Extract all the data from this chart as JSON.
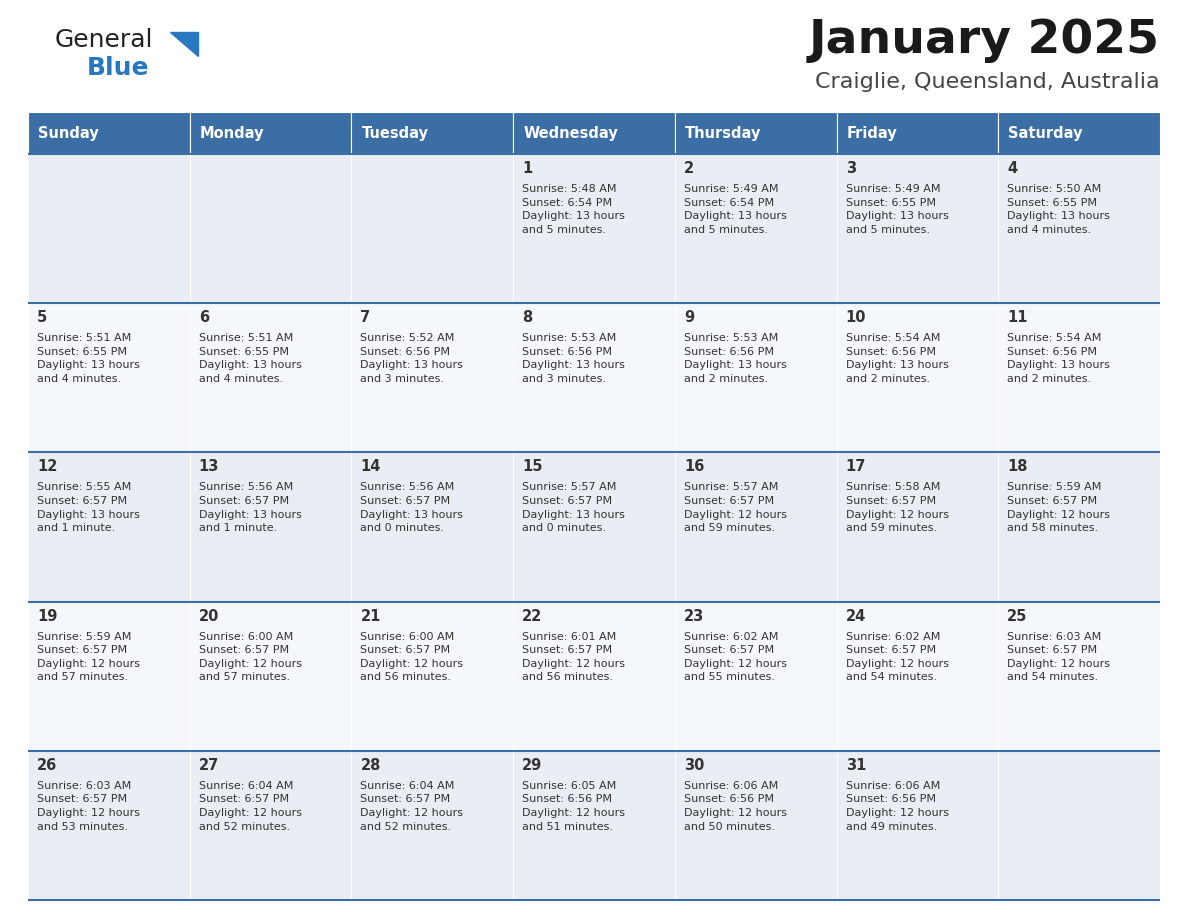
{
  "title": "January 2025",
  "subtitle": "Craiglie, Queensland, Australia",
  "header_color": "#3a6ea5",
  "header_text_color": "#ffffff",
  "cell_bg_odd": "#e8eef4",
  "cell_bg_even": "#f5f8fb",
  "separator_color": "#3a6ea5",
  "text_color": "#333333",
  "days_of_week": [
    "Sunday",
    "Monday",
    "Tuesday",
    "Wednesday",
    "Thursday",
    "Friday",
    "Saturday"
  ],
  "weeks": [
    [
      {
        "day": "",
        "info": ""
      },
      {
        "day": "",
        "info": ""
      },
      {
        "day": "",
        "info": ""
      },
      {
        "day": "1",
        "info": "Sunrise: 5:48 AM\nSunset: 6:54 PM\nDaylight: 13 hours\nand 5 minutes."
      },
      {
        "day": "2",
        "info": "Sunrise: 5:49 AM\nSunset: 6:54 PM\nDaylight: 13 hours\nand 5 minutes."
      },
      {
        "day": "3",
        "info": "Sunrise: 5:49 AM\nSunset: 6:55 PM\nDaylight: 13 hours\nand 5 minutes."
      },
      {
        "day": "4",
        "info": "Sunrise: 5:50 AM\nSunset: 6:55 PM\nDaylight: 13 hours\nand 4 minutes."
      }
    ],
    [
      {
        "day": "5",
        "info": "Sunrise: 5:51 AM\nSunset: 6:55 PM\nDaylight: 13 hours\nand 4 minutes."
      },
      {
        "day": "6",
        "info": "Sunrise: 5:51 AM\nSunset: 6:55 PM\nDaylight: 13 hours\nand 4 minutes."
      },
      {
        "day": "7",
        "info": "Sunrise: 5:52 AM\nSunset: 6:56 PM\nDaylight: 13 hours\nand 3 minutes."
      },
      {
        "day": "8",
        "info": "Sunrise: 5:53 AM\nSunset: 6:56 PM\nDaylight: 13 hours\nand 3 minutes."
      },
      {
        "day": "9",
        "info": "Sunrise: 5:53 AM\nSunset: 6:56 PM\nDaylight: 13 hours\nand 2 minutes."
      },
      {
        "day": "10",
        "info": "Sunrise: 5:54 AM\nSunset: 6:56 PM\nDaylight: 13 hours\nand 2 minutes."
      },
      {
        "day": "11",
        "info": "Sunrise: 5:54 AM\nSunset: 6:56 PM\nDaylight: 13 hours\nand 2 minutes."
      }
    ],
    [
      {
        "day": "12",
        "info": "Sunrise: 5:55 AM\nSunset: 6:57 PM\nDaylight: 13 hours\nand 1 minute."
      },
      {
        "day": "13",
        "info": "Sunrise: 5:56 AM\nSunset: 6:57 PM\nDaylight: 13 hours\nand 1 minute."
      },
      {
        "day": "14",
        "info": "Sunrise: 5:56 AM\nSunset: 6:57 PM\nDaylight: 13 hours\nand 0 minutes."
      },
      {
        "day": "15",
        "info": "Sunrise: 5:57 AM\nSunset: 6:57 PM\nDaylight: 13 hours\nand 0 minutes."
      },
      {
        "day": "16",
        "info": "Sunrise: 5:57 AM\nSunset: 6:57 PM\nDaylight: 12 hours\nand 59 minutes."
      },
      {
        "day": "17",
        "info": "Sunrise: 5:58 AM\nSunset: 6:57 PM\nDaylight: 12 hours\nand 59 minutes."
      },
      {
        "day": "18",
        "info": "Sunrise: 5:59 AM\nSunset: 6:57 PM\nDaylight: 12 hours\nand 58 minutes."
      }
    ],
    [
      {
        "day": "19",
        "info": "Sunrise: 5:59 AM\nSunset: 6:57 PM\nDaylight: 12 hours\nand 57 minutes."
      },
      {
        "day": "20",
        "info": "Sunrise: 6:00 AM\nSunset: 6:57 PM\nDaylight: 12 hours\nand 57 minutes."
      },
      {
        "day": "21",
        "info": "Sunrise: 6:00 AM\nSunset: 6:57 PM\nDaylight: 12 hours\nand 56 minutes."
      },
      {
        "day": "22",
        "info": "Sunrise: 6:01 AM\nSunset: 6:57 PM\nDaylight: 12 hours\nand 56 minutes."
      },
      {
        "day": "23",
        "info": "Sunrise: 6:02 AM\nSunset: 6:57 PM\nDaylight: 12 hours\nand 55 minutes."
      },
      {
        "day": "24",
        "info": "Sunrise: 6:02 AM\nSunset: 6:57 PM\nDaylight: 12 hours\nand 54 minutes."
      },
      {
        "day": "25",
        "info": "Sunrise: 6:03 AM\nSunset: 6:57 PM\nDaylight: 12 hours\nand 54 minutes."
      }
    ],
    [
      {
        "day": "26",
        "info": "Sunrise: 6:03 AM\nSunset: 6:57 PM\nDaylight: 12 hours\nand 53 minutes."
      },
      {
        "day": "27",
        "info": "Sunrise: 6:04 AM\nSunset: 6:57 PM\nDaylight: 12 hours\nand 52 minutes."
      },
      {
        "day": "28",
        "info": "Sunrise: 6:04 AM\nSunset: 6:57 PM\nDaylight: 12 hours\nand 52 minutes."
      },
      {
        "day": "29",
        "info": "Sunrise: 6:05 AM\nSunset: 6:56 PM\nDaylight: 12 hours\nand 51 minutes."
      },
      {
        "day": "30",
        "info": "Sunrise: 6:06 AM\nSunset: 6:56 PM\nDaylight: 12 hours\nand 50 minutes."
      },
      {
        "day": "31",
        "info": "Sunrise: 6:06 AM\nSunset: 6:56 PM\nDaylight: 12 hours\nand 49 minutes."
      },
      {
        "day": "",
        "info": ""
      }
    ]
  ],
  "logo_text1": "General",
  "logo_text2": "Blue",
  "logo_color1": "#222222",
  "logo_color2": "#2878c0",
  "figsize": [
    11.88,
    9.18
  ],
  "dpi": 100
}
